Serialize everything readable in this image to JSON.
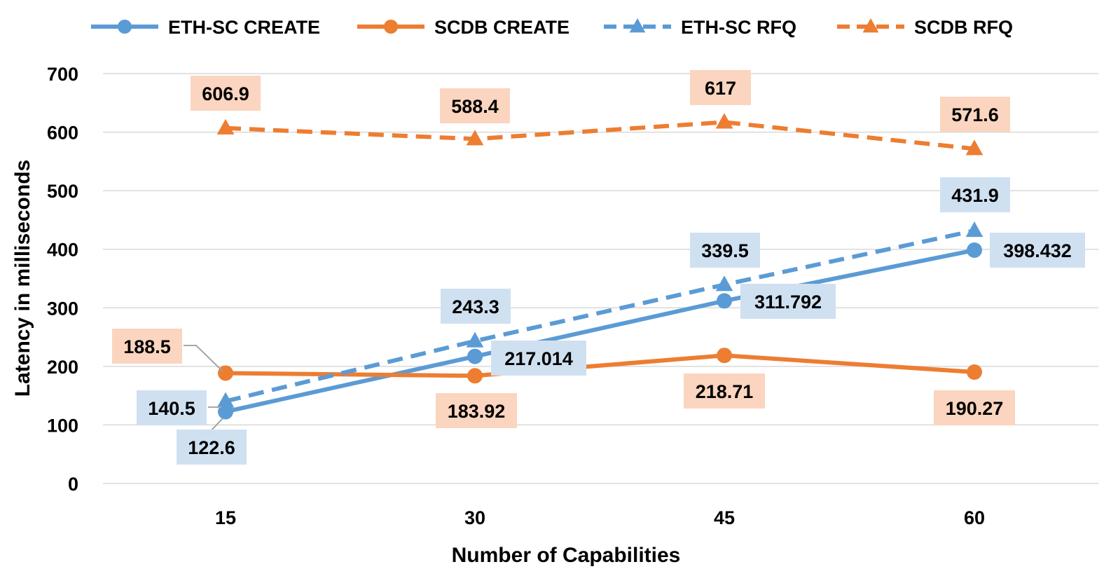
{
  "chart_data": {
    "type": "line",
    "xlabel": "Number of Capabilities",
    "ylabel": "Latency  in milliseconds",
    "categories": [
      "15",
      "30",
      "45",
      "60"
    ],
    "ylim": [
      0,
      700
    ],
    "yticks": [
      0,
      100,
      200,
      300,
      400,
      500,
      600,
      700
    ],
    "grid": "horizontal",
    "legend": "top",
    "series": [
      {
        "name": "ETH-SC CREATE",
        "values": [
          122.6,
          217.014,
          311.792,
          398.432
        ],
        "labels": [
          "122.6",
          "217.014",
          "311.792",
          "398.432"
        ],
        "color": "#5b9bd5",
        "line": "solid",
        "marker": "circle"
      },
      {
        "name": "SCDB CREATE",
        "values": [
          188.5,
          183.92,
          218.71,
          190.27
        ],
        "labels": [
          "188.5",
          "183.92",
          "218.71",
          "190.27"
        ],
        "color": "#ed7d31",
        "line": "solid",
        "marker": "circle"
      },
      {
        "name": "ETH-SC RFQ",
        "values": [
          140.5,
          243.3,
          339.5,
          431.9
        ],
        "labels": [
          "140.5",
          "243.3",
          "339.5",
          "431.9"
        ],
        "color": "#5b9bd5",
        "line": "dashed",
        "marker": "triangle"
      },
      {
        "name": "SCDB RFQ",
        "values": [
          606.9,
          588.4,
          617,
          571.6
        ],
        "labels": [
          "606.9",
          "588.4",
          "617",
          "571.6"
        ],
        "color": "#ed7d31",
        "line": "dashed",
        "marker": "triangle"
      }
    ],
    "label_fill": {
      "#5b9bd5": "#cfe0f1",
      "#ed7d31": "#fbd5bf"
    }
  }
}
